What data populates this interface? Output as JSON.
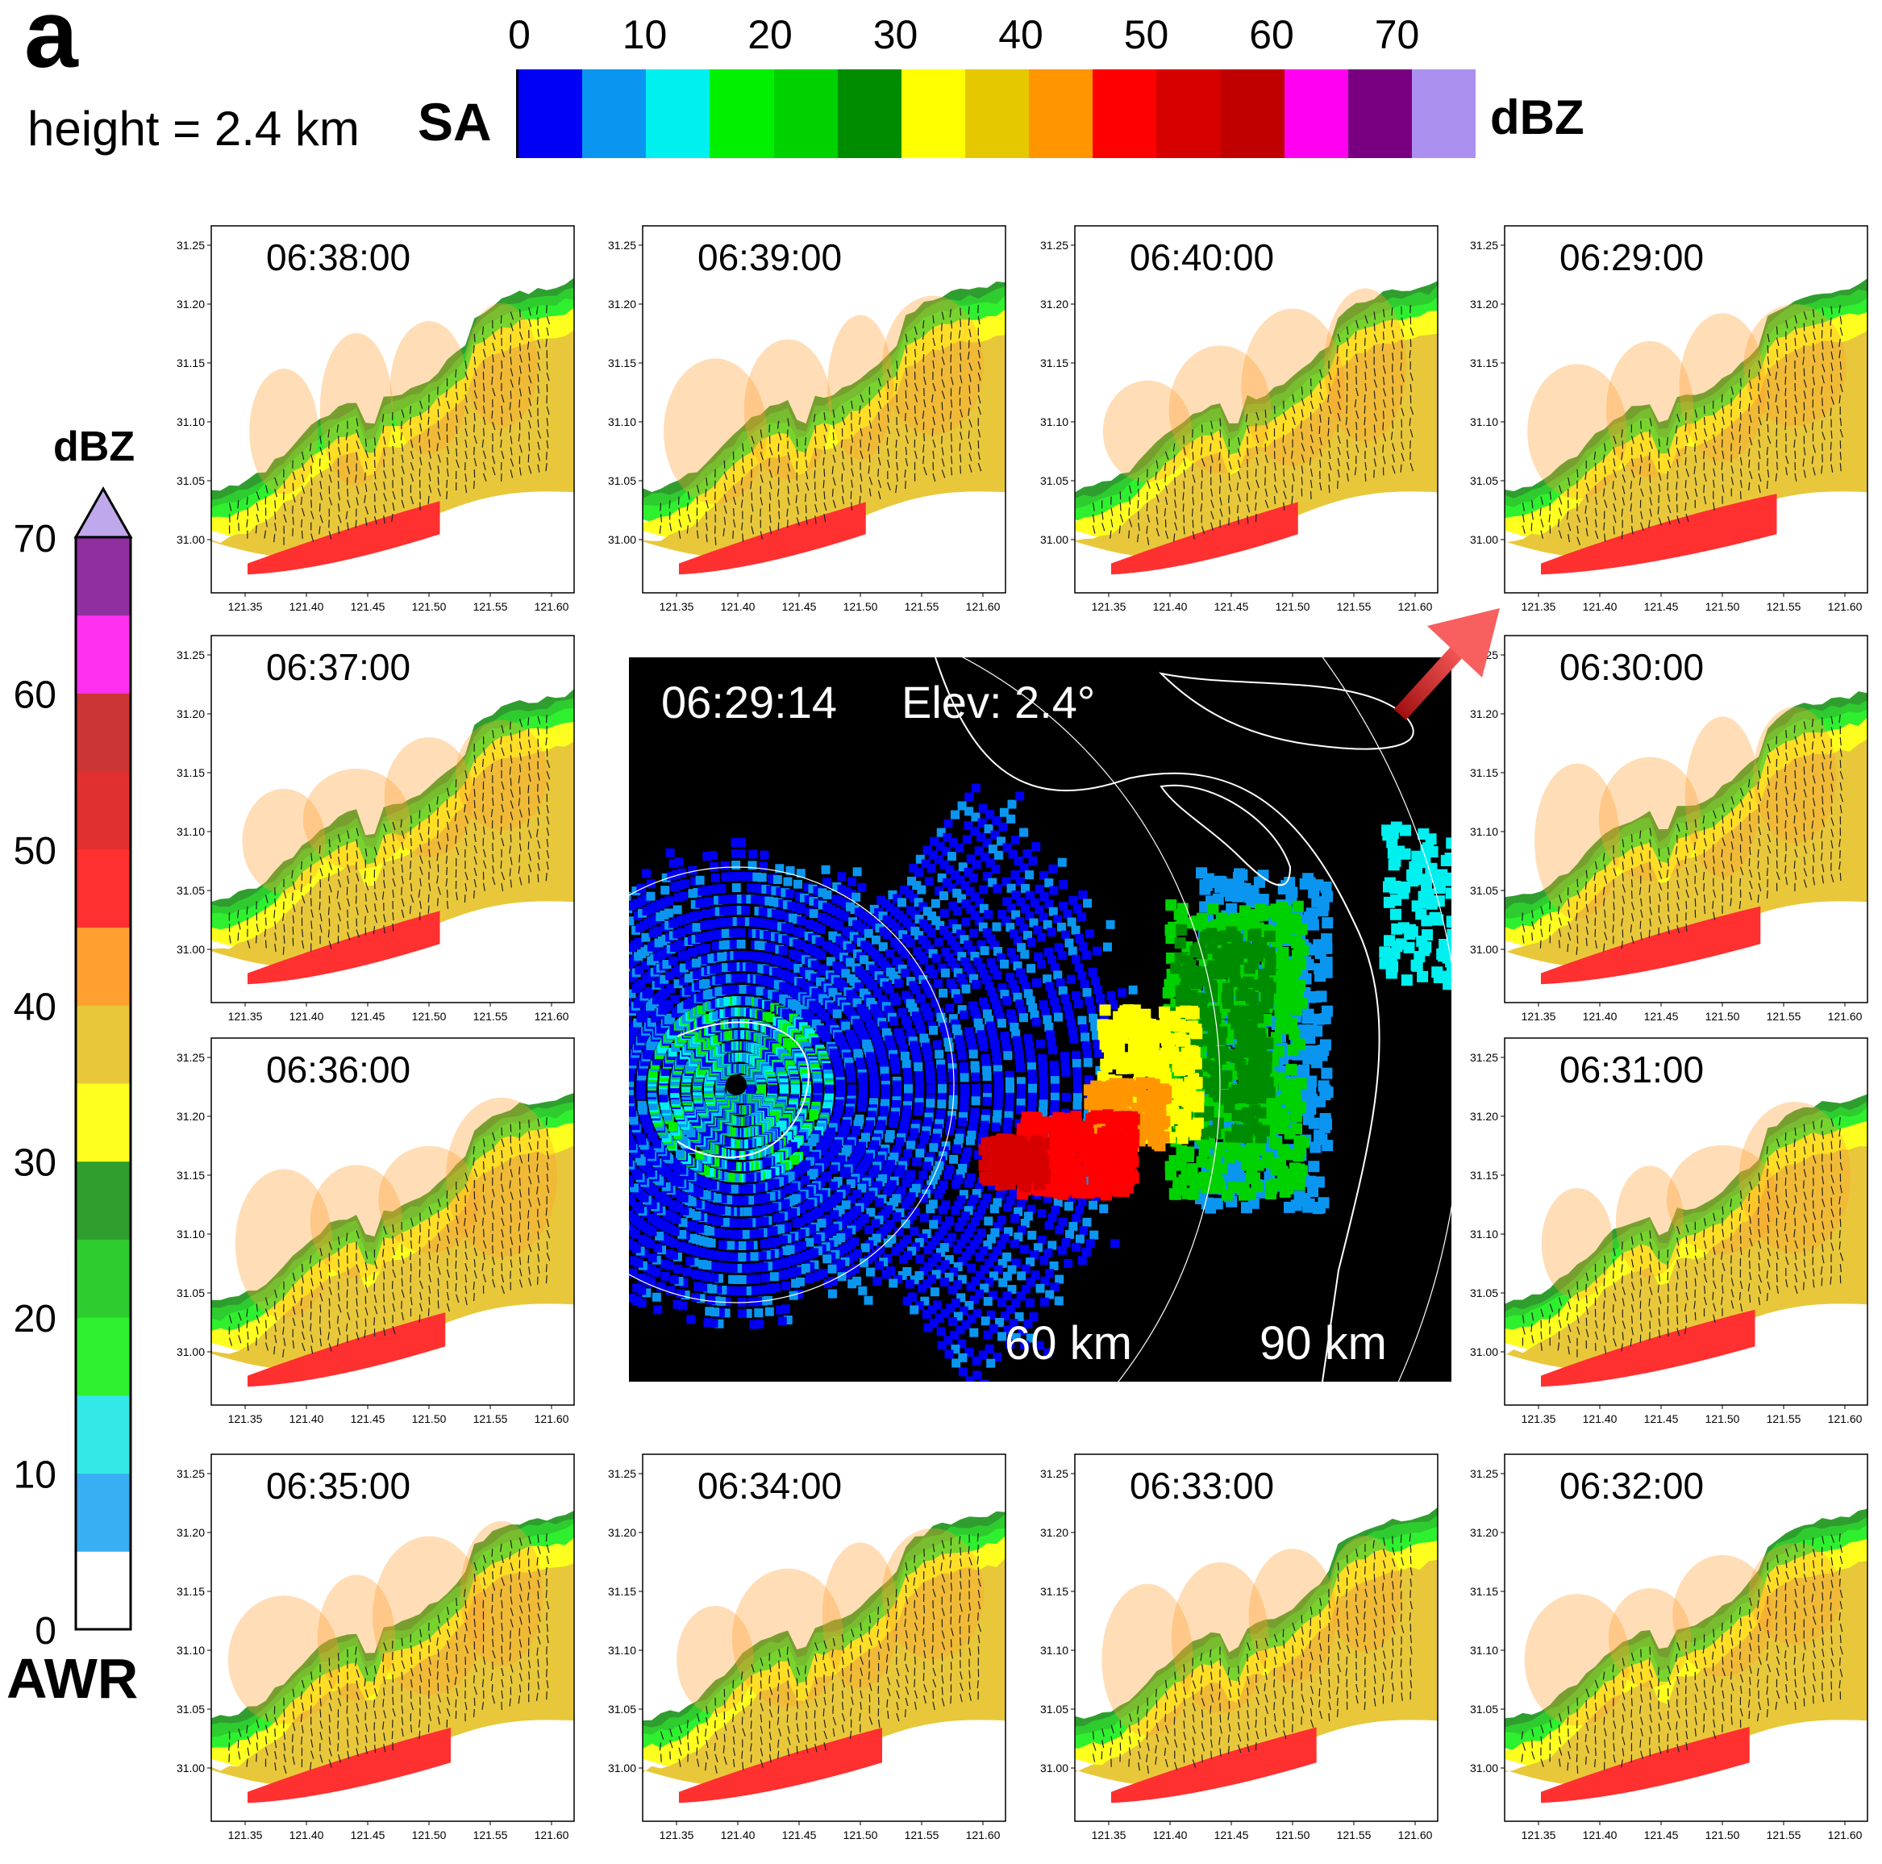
{
  "figure": {
    "panel_letter": "a",
    "height_label": "height = 2.4 km"
  },
  "sa_colorbar": {
    "label": "SA",
    "unit": "dBZ",
    "ticks": [
      "0",
      "10",
      "20",
      "30",
      "40",
      "50",
      "60",
      "70"
    ],
    "colors": [
      "#0000f5",
      "#0a96f0",
      "#00f0f0",
      "#00f000",
      "#00d200",
      "#008c00",
      "#ffff00",
      "#e6c800",
      "#ff9600",
      "#ff0000",
      "#d70000",
      "#c00000",
      "#ff00f0",
      "#780080",
      "#ac90f0"
    ]
  },
  "awr_colorbar": {
    "label": "AWR",
    "unit": "dBZ",
    "ticks": [
      "0",
      "10",
      "20",
      "30",
      "40",
      "50",
      "60",
      "70"
    ],
    "colors": [
      "#ffffff",
      "#38aff2",
      "#35e8e8",
      "#2ff02f",
      "#2fcc2f",
      "#2f9e2f",
      "#ffff1f",
      "#e8c83a",
      "#ffa030",
      "#ff3030",
      "#e03030",
      "#cc3535",
      "#ff30f0",
      "#9030a0"
    ],
    "top_color": "#c0a8ec"
  },
  "chart_data": {
    "type": "heatmap",
    "variable": "reflectivity (dBZ) with wind vectors",
    "x_ticks": [
      "121.35",
      "121.40",
      "121.45",
      "121.50",
      "121.55",
      "121.60"
    ],
    "y_ticks": [
      "31.25",
      "31.20",
      "31.15",
      "31.10",
      "31.05",
      "31.00"
    ],
    "panels": [
      {
        "time": "06:29:00",
        "col": 3,
        "row": 0,
        "intensity": 1.0
      },
      {
        "time": "06:30:00",
        "col": 3,
        "row": 1,
        "intensity": 0.85
      },
      {
        "time": "06:31:00",
        "col": 3,
        "row": 2,
        "intensity": 0.8
      },
      {
        "time": "06:32:00",
        "col": 3,
        "row": 3,
        "intensity": 0.75
      },
      {
        "time": "06:33:00",
        "col": 2,
        "row": 3,
        "intensity": 0.72
      },
      {
        "time": "06:34:00",
        "col": 1,
        "row": 3,
        "intensity": 0.7
      },
      {
        "time": "06:35:00",
        "col": 0,
        "row": 3,
        "intensity": 0.7
      },
      {
        "time": "06:36:00",
        "col": 0,
        "row": 2,
        "intensity": 0.65
      },
      {
        "time": "06:37:00",
        "col": 0,
        "row": 1,
        "intensity": 0.6
      },
      {
        "time": "06:38:00",
        "col": 0,
        "row": 0,
        "intensity": 0.6
      },
      {
        "time": "06:39:00",
        "col": 1,
        "row": 0,
        "intensity": 0.55
      },
      {
        "time": "06:40:00",
        "col": 2,
        "row": 0,
        "intensity": 0.55
      }
    ],
    "radar_ppi": {
      "time": "06:29:14",
      "elevation": "Elev: 2.4°",
      "range_labels": [
        "60 km",
        "90 km"
      ]
    }
  }
}
